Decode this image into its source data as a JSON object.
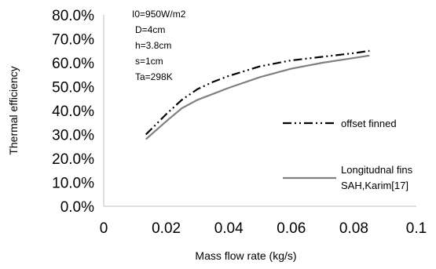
{
  "chart_data": {
    "type": "line",
    "title": "",
    "xlabel": "Mass flow rate (kg/s)",
    "ylabel": "Thermal efficiency",
    "xlim": [
      0,
      0.1
    ],
    "ylim": [
      0,
      0.8
    ],
    "x_ticks": [
      "0",
      "0.02",
      "0.04",
      "0.06",
      "0.08",
      "0.1"
    ],
    "y_ticks": [
      "0.0%",
      "10.0%",
      "20.0%",
      "30.0%",
      "40.0%",
      "50.0%",
      "60.0%",
      "70.0%",
      "80.0%"
    ],
    "grid": false,
    "legend_position": "right",
    "annotations": [
      "I0=950W/m2",
      "D=4cm",
      "h=3.8cm",
      "s=1cm",
      "Ta=298K"
    ],
    "series": [
      {
        "name": "offset finned",
        "style": "dash-dot-dot",
        "color": "#000000",
        "x": [
          0.0135,
          0.02,
          0.025,
          0.03,
          0.035,
          0.04,
          0.05,
          0.06,
          0.07,
          0.08,
          0.085
        ],
        "y": [
          0.3,
          0.385,
          0.445,
          0.49,
          0.52,
          0.545,
          0.585,
          0.61,
          0.625,
          0.64,
          0.65
        ]
      },
      {
        "name": "Longitudnal fins SAH,Karim[17]",
        "legend_lines": [
          "Longitudnal fins",
          "SAH,Karim[17]"
        ],
        "style": "solid",
        "color": "#808080",
        "x": [
          0.0135,
          0.02,
          0.025,
          0.03,
          0.035,
          0.04,
          0.05,
          0.06,
          0.07,
          0.08,
          0.085
        ],
        "y": [
          0.28,
          0.355,
          0.41,
          0.445,
          0.47,
          0.495,
          0.54,
          0.575,
          0.6,
          0.62,
          0.63
        ]
      }
    ]
  }
}
